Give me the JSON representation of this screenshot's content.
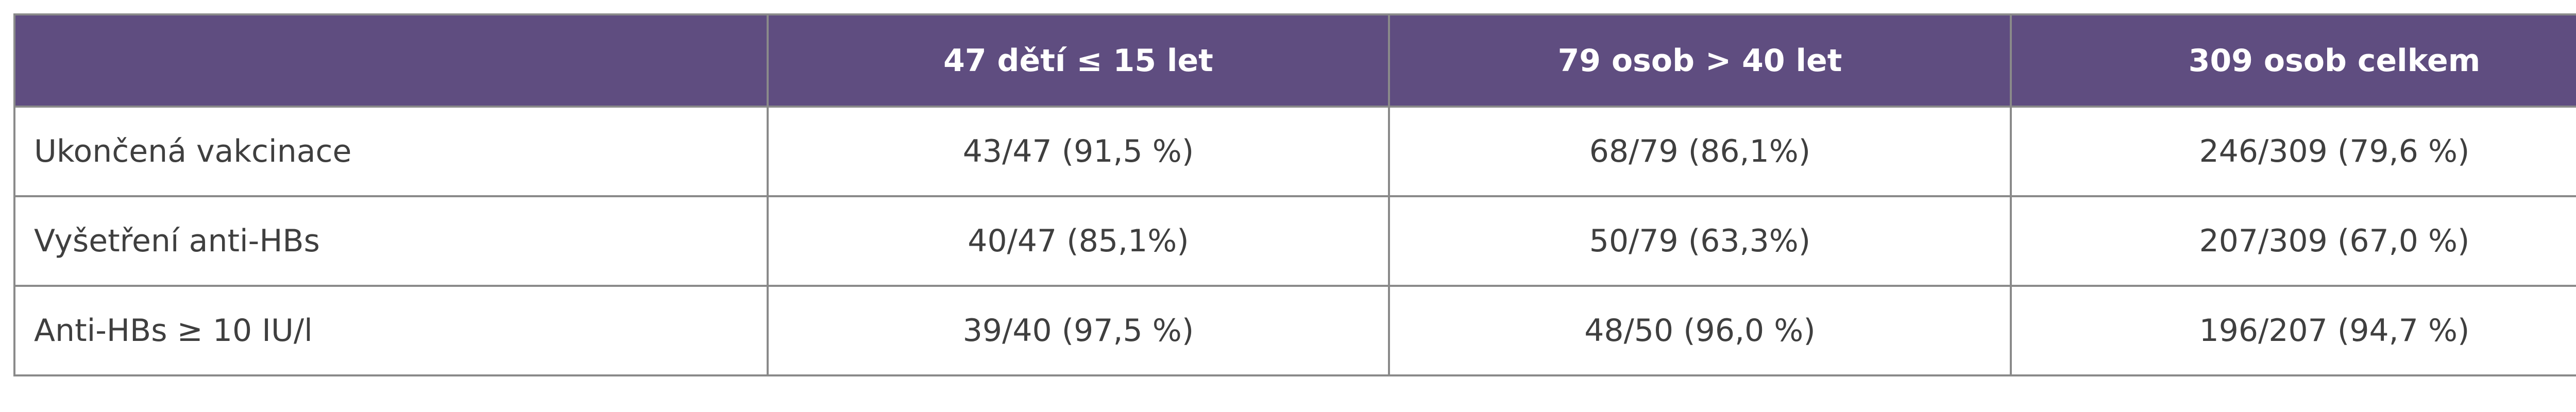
{
  "table": {
    "header": [
      "47 dětí ≤ 15 let",
      "79 osob > 40 let",
      "309 osob celkem"
    ],
    "rows": [
      [
        "Ukončená vakcinace",
        "43/47 (91,5 %)",
        "68/79 (86,1%)",
        "246/309 (79,6 %)"
      ],
      [
        "Vyšetření anti-HBs",
        "40/47 (85,1%)",
        "50/79 (63,3%)",
        "207/309 (67,0 %)"
      ],
      [
        "Anti-HBs ≥ 10 IU/l",
        "39/40 (97,5 %)",
        "48/50 (96,0 %)",
        "196/207 (94,7 %)"
      ]
    ]
  }
}
